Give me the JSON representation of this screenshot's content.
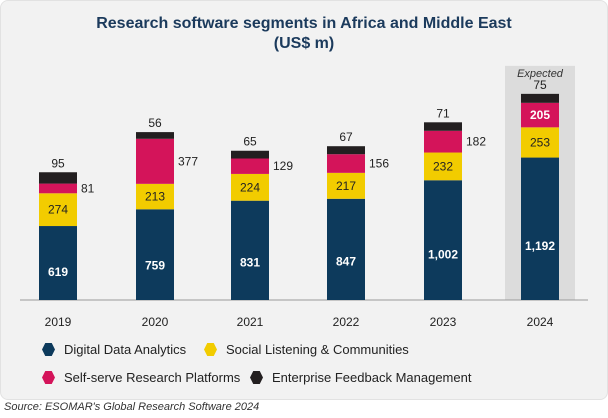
{
  "chart_data": {
    "type": "bar",
    "stacked": true,
    "title": "Research software segments in Africa and Middle East",
    "subtitle": "(US$ m)",
    "categories": [
      "2019",
      "2020",
      "2021",
      "2022",
      "2023",
      "2024"
    ],
    "series": [
      {
        "name": "Digital Data Analytics",
        "color": "#0d3a5c",
        "values": [
          619,
          759,
          831,
          847,
          1002,
          1192
        ],
        "labels": [
          "619",
          "759",
          "831",
          "847",
          "1,002",
          "1,192"
        ]
      },
      {
        "name": "Social Listening & Communities",
        "color": "#f2cc00",
        "values": [
          274,
          213,
          224,
          217,
          232,
          253
        ],
        "labels": [
          "274",
          "213",
          "224",
          "217",
          "232",
          "253"
        ]
      },
      {
        "name": "Self-serve Research Platforms",
        "color": "#d4145a",
        "values": [
          81,
          377,
          129,
          156,
          182,
          205
        ],
        "labels": [
          "81",
          "377",
          "129",
          "156",
          "182",
          "205"
        ]
      },
      {
        "name": "Enterprise Feedback Management",
        "color": "#231f20",
        "values": [
          95,
          56,
          65,
          67,
          71,
          75
        ],
        "labels": [
          "95",
          "56",
          "65",
          "67",
          "71",
          "75"
        ]
      }
    ],
    "highlight": {
      "category": "2024",
      "label": "Expected"
    },
    "legend_position": "bottom",
    "grid": false
  },
  "source": "Source: ESOMAR's Global Research Software 2024"
}
